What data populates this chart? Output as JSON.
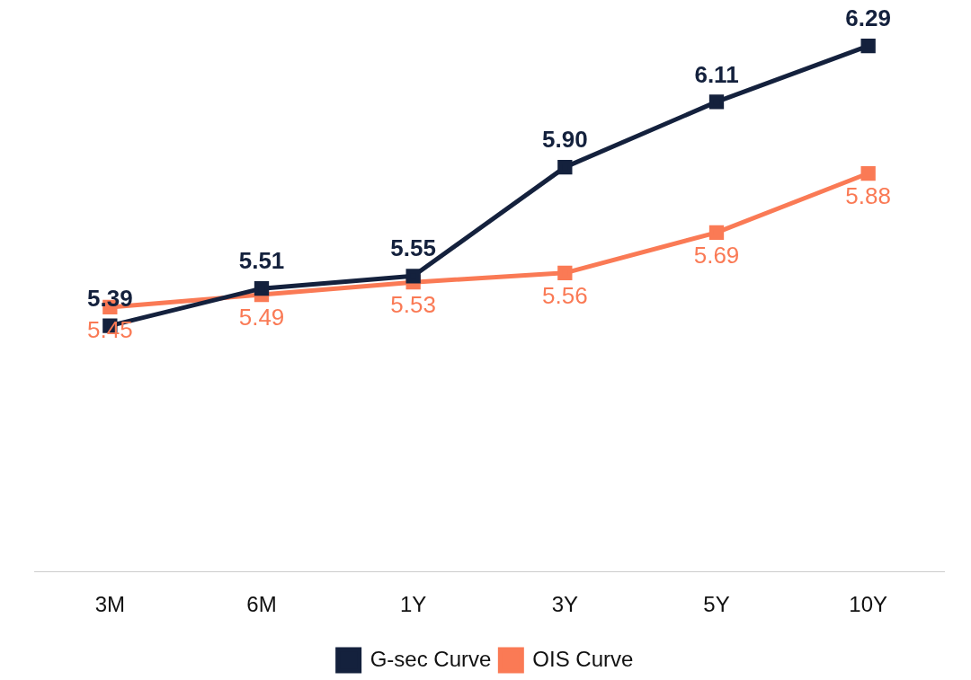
{
  "chart_data": {
    "type": "line",
    "categories": [
      "3M",
      "6M",
      "1Y",
      "3Y",
      "5Y",
      "10Y"
    ],
    "series": [
      {
        "name": "G-sec Curve",
        "color": "#14213d",
        "values": [
          5.39,
          5.51,
          5.55,
          5.9,
          6.11,
          6.29
        ],
        "value_labels": [
          "5.39",
          "5.51",
          "5.55",
          "5.90",
          "6.11",
          "6.29"
        ]
      },
      {
        "name": "OIS Curve",
        "color": "#fa7a55",
        "values": [
          5.45,
          5.49,
          5.53,
          5.56,
          5.69,
          5.88
        ],
        "value_labels": [
          "5.45",
          "5.49",
          "5.53",
          "5.56",
          "5.69",
          "5.88"
        ]
      }
    ],
    "tick_labels": "x",
    "legend": "bottom",
    "marker": "square",
    "line_style": "solid",
    "grid": false
  }
}
